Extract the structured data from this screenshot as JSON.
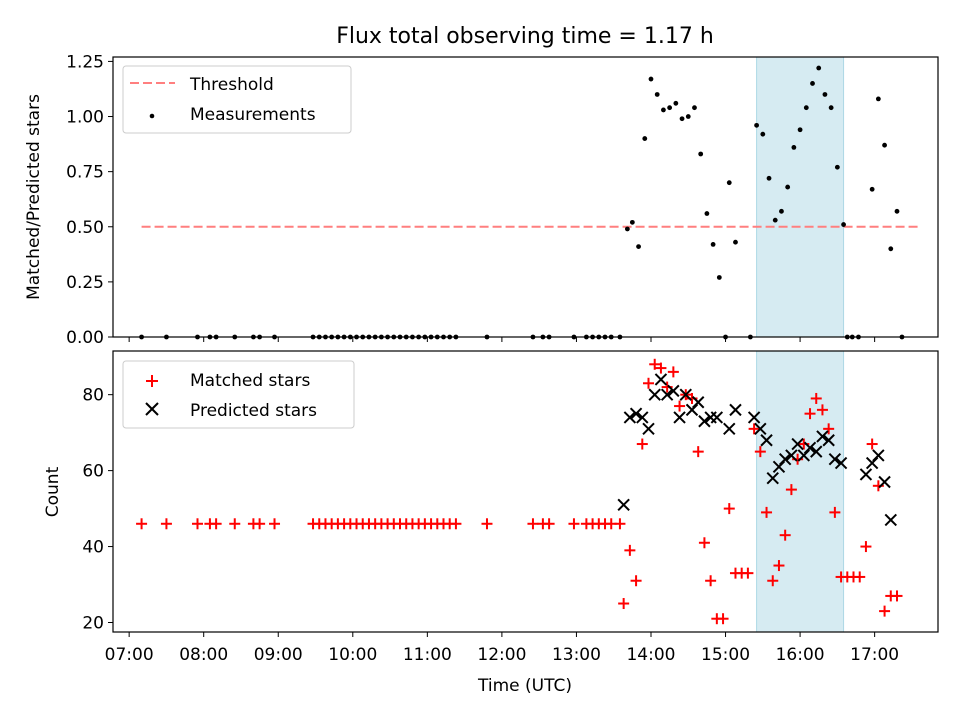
{
  "title": "Flux total observing time = 1.17 h",
  "chart_data": [
    {
      "type": "scatter",
      "panel": "top",
      "title": "Flux total observing time = 1.17 h",
      "ylabel": "Matched/Predicted stars",
      "ylim": [
        0,
        1.27
      ],
      "xlim": [
        "06:47",
        "17:51"
      ],
      "yticks": [
        0.0,
        0.25,
        0.5,
        0.75,
        1.0,
        1.25
      ],
      "ytick_labels": [
        "0.00",
        "0.25",
        "0.50",
        "0.75",
        "1.00",
        "1.25"
      ],
      "legend_placement": "top-left",
      "legend": [
        "Threshold",
        "Measurements"
      ],
      "grid": false,
      "threshold": {
        "name": "Threshold",
        "value": 0.5,
        "x": [
          "07:10",
          "17:35"
        ],
        "color": "#ff7f7f",
        "style": "dashed"
      },
      "shaded_interval": {
        "x": [
          "15:25",
          "16:35"
        ],
        "color": "#add8e6"
      },
      "series": [
        {
          "name": "Measurements",
          "color": "#000000",
          "marker": "dot",
          "points": [
            [
              "07:10",
              0
            ],
            [
              "07:30",
              0
            ],
            [
              "07:55",
              0
            ],
            [
              "08:05",
              0
            ],
            [
              "08:10",
              0
            ],
            [
              "08:25",
              0
            ],
            [
              "08:40",
              0
            ],
            [
              "08:45",
              0
            ],
            [
              "08:57",
              0
            ],
            [
              "09:28",
              0
            ],
            [
              "09:33",
              0
            ],
            [
              "09:38",
              0
            ],
            [
              "09:43",
              0
            ],
            [
              "09:48",
              0
            ],
            [
              "09:53",
              0
            ],
            [
              "09:58",
              0
            ],
            [
              "10:03",
              0
            ],
            [
              "10:08",
              0
            ],
            [
              "10:13",
              0
            ],
            [
              "10:18",
              0
            ],
            [
              "10:23",
              0
            ],
            [
              "10:28",
              0
            ],
            [
              "10:33",
              0
            ],
            [
              "10:38",
              0
            ],
            [
              "10:43",
              0
            ],
            [
              "10:48",
              0
            ],
            [
              "10:53",
              0
            ],
            [
              "10:58",
              0
            ],
            [
              "11:03",
              0
            ],
            [
              "11:08",
              0
            ],
            [
              "11:13",
              0
            ],
            [
              "11:18",
              0
            ],
            [
              "11:23",
              0
            ],
            [
              "11:48",
              0
            ],
            [
              "12:25",
              0
            ],
            [
              "12:33",
              0
            ],
            [
              "12:38",
              0
            ],
            [
              "12:58",
              0
            ],
            [
              "13:08",
              0
            ],
            [
              "13:13",
              0
            ],
            [
              "13:18",
              0
            ],
            [
              "13:23",
              0
            ],
            [
              "13:28",
              0
            ],
            [
              "13:35",
              0
            ],
            [
              "13:41",
              0.49
            ],
            [
              "13:45",
              0.52
            ],
            [
              "13:50",
              0.41
            ],
            [
              "13:55",
              0.9
            ],
            [
              "14:00",
              1.17
            ],
            [
              "14:05",
              1.1
            ],
            [
              "14:10",
              1.03
            ],
            [
              "14:15",
              1.04
            ],
            [
              "14:20",
              1.06
            ],
            [
              "14:25",
              0.99
            ],
            [
              "14:30",
              1.0
            ],
            [
              "14:35",
              1.04
            ],
            [
              "14:40",
              0.83
            ],
            [
              "14:45",
              0.56
            ],
            [
              "14:50",
              0.42
            ],
            [
              "14:55",
              0.27
            ],
            [
              "15:00",
              0.0
            ],
            [
              "15:03",
              0.7
            ],
            [
              "15:08",
              0.43
            ],
            [
              "15:20",
              0.0
            ],
            [
              "15:25",
              0.96
            ],
            [
              "15:30",
              0.92
            ],
            [
              "15:35",
              0.72
            ],
            [
              "15:40",
              0.53
            ],
            [
              "15:45",
              0.57
            ],
            [
              "15:50",
              0.68
            ],
            [
              "15:55",
              0.86
            ],
            [
              "16:00",
              0.94
            ],
            [
              "16:05",
              1.04
            ],
            [
              "16:10",
              1.15
            ],
            [
              "16:15",
              1.22
            ],
            [
              "16:20",
              1.1
            ],
            [
              "16:25",
              1.04
            ],
            [
              "16:30",
              0.77
            ],
            [
              "16:35",
              0.51
            ],
            [
              "16:38",
              0
            ],
            [
              "16:42",
              0
            ],
            [
              "16:47",
              0
            ],
            [
              "16:58",
              0.67
            ],
            [
              "17:03",
              1.08
            ],
            [
              "17:08",
              0.87
            ],
            [
              "17:13",
              0.4
            ],
            [
              "17:18",
              0.57
            ],
            [
              "17:22",
              0
            ]
          ]
        }
      ]
    },
    {
      "type": "scatter",
      "panel": "bottom",
      "xlabel": "Time (UTC)",
      "ylabel": "Count",
      "ylim": [
        17.5,
        91.5
      ],
      "xlim": [
        "06:47",
        "17:51"
      ],
      "yticks": [
        20,
        40,
        60,
        80
      ],
      "ytick_labels": [
        "20",
        "40",
        "60",
        "80"
      ],
      "xticks": [
        "07:00",
        "08:00",
        "09:00",
        "10:00",
        "11:00",
        "12:00",
        "13:00",
        "14:00",
        "15:00",
        "16:00",
        "17:00"
      ],
      "xtick_labels": [
        "07:00",
        "08:00",
        "09:00",
        "10:00",
        "11:00",
        "12:00",
        "13:00",
        "14:00",
        "15:00",
        "16:00",
        "17:00"
      ],
      "legend_placement": "top-left",
      "legend": [
        "Matched stars",
        "Predicted stars"
      ],
      "grid": false,
      "shaded_interval": {
        "x": [
          "15:25",
          "16:35"
        ],
        "color": "#add8e6"
      },
      "series": [
        {
          "name": "Matched stars",
          "color": "#ff0000",
          "marker": "plus",
          "points": [
            [
              "07:10",
              46
            ],
            [
              "07:30",
              46
            ],
            [
              "07:55",
              46
            ],
            [
              "08:05",
              46
            ],
            [
              "08:10",
              46
            ],
            [
              "08:25",
              46
            ],
            [
              "08:40",
              46
            ],
            [
              "08:45",
              46
            ],
            [
              "08:57",
              46
            ],
            [
              "09:28",
              46
            ],
            [
              "09:33",
              46
            ],
            [
              "09:38",
              46
            ],
            [
              "09:43",
              46
            ],
            [
              "09:48",
              46
            ],
            [
              "09:53",
              46
            ],
            [
              "09:58",
              46
            ],
            [
              "10:03",
              46
            ],
            [
              "10:08",
              46
            ],
            [
              "10:13",
              46
            ],
            [
              "10:18",
              46
            ],
            [
              "10:23",
              46
            ],
            [
              "10:28",
              46
            ],
            [
              "10:33",
              46
            ],
            [
              "10:38",
              46
            ],
            [
              "10:43",
              46
            ],
            [
              "10:48",
              46
            ],
            [
              "10:53",
              46
            ],
            [
              "10:58",
              46
            ],
            [
              "11:03",
              46
            ],
            [
              "11:08",
              46
            ],
            [
              "11:13",
              46
            ],
            [
              "11:18",
              46
            ],
            [
              "11:23",
              46
            ],
            [
              "11:48",
              46
            ],
            [
              "12:25",
              46
            ],
            [
              "12:33",
              46
            ],
            [
              "12:38",
              46
            ],
            [
              "12:58",
              46
            ],
            [
              "13:08",
              46
            ],
            [
              "13:13",
              46
            ],
            [
              "13:18",
              46
            ],
            [
              "13:23",
              46
            ],
            [
              "13:28",
              46
            ],
            [
              "13:35",
              46
            ],
            [
              "13:38",
              25
            ],
            [
              "13:43",
              39
            ],
            [
              "13:48",
              31
            ],
            [
              "13:53",
              67
            ],
            [
              "13:58",
              83
            ],
            [
              "14:03",
              88
            ],
            [
              "14:08",
              87
            ],
            [
              "14:13",
              82
            ],
            [
              "14:18",
              86
            ],
            [
              "14:23",
              77
            ],
            [
              "14:28",
              80
            ],
            [
              "14:33",
              79
            ],
            [
              "14:38",
              65
            ],
            [
              "14:43",
              41
            ],
            [
              "14:48",
              31
            ],
            [
              "14:53",
              21
            ],
            [
              "14:58",
              21
            ],
            [
              "15:03",
              50
            ],
            [
              "15:08",
              33
            ],
            [
              "15:13",
              33
            ],
            [
              "15:18",
              33
            ],
            [
              "15:23",
              71
            ],
            [
              "15:28",
              65
            ],
            [
              "15:33",
              49
            ],
            [
              "15:38",
              31
            ],
            [
              "15:43",
              35
            ],
            [
              "15:48",
              43
            ],
            [
              "15:53",
              55
            ],
            [
              "15:58",
              63
            ],
            [
              "16:03",
              67
            ],
            [
              "16:08",
              75
            ],
            [
              "16:13",
              79
            ],
            [
              "16:18",
              76
            ],
            [
              "16:23",
              71
            ],
            [
              "16:28",
              49
            ],
            [
              "16:33",
              32
            ],
            [
              "16:38",
              32
            ],
            [
              "16:43",
              32
            ],
            [
              "16:48",
              32
            ],
            [
              "16:53",
              40
            ],
            [
              "16:58",
              67
            ],
            [
              "17:03",
              56
            ],
            [
              "17:08",
              23
            ],
            [
              "17:13",
              27
            ],
            [
              "17:18",
              27
            ]
          ]
        },
        {
          "name": "Predicted stars",
          "color": "#000000",
          "marker": "x",
          "points": [
            [
              "13:38",
              51
            ],
            [
              "13:43",
              74
            ],
            [
              "13:48",
              75
            ],
            [
              "13:53",
              74
            ],
            [
              "13:58",
              71
            ],
            [
              "14:03",
              80
            ],
            [
              "14:08",
              84
            ],
            [
              "14:13",
              80
            ],
            [
              "14:18",
              81
            ],
            [
              "14:23",
              74
            ],
            [
              "14:28",
              80
            ],
            [
              "14:33",
              76
            ],
            [
              "14:38",
              78
            ],
            [
              "14:43",
              73
            ],
            [
              "14:48",
              74
            ],
            [
              "14:53",
              74
            ],
            [
              "15:03",
              71
            ],
            [
              "15:08",
              76
            ],
            [
              "15:23",
              74
            ],
            [
              "15:28",
              71
            ],
            [
              "15:33",
              68
            ],
            [
              "15:38",
              58
            ],
            [
              "15:43",
              61
            ],
            [
              "15:48",
              63
            ],
            [
              "15:53",
              64
            ],
            [
              "15:58",
              67
            ],
            [
              "16:03",
              64
            ],
            [
              "16:08",
              66
            ],
            [
              "16:13",
              65
            ],
            [
              "16:18",
              69
            ],
            [
              "16:23",
              68
            ],
            [
              "16:28",
              63
            ],
            [
              "16:33",
              62
            ],
            [
              "16:53",
              59
            ],
            [
              "16:58",
              62
            ],
            [
              "17:03",
              64
            ],
            [
              "17:08",
              57
            ],
            [
              "17:13",
              47
            ]
          ]
        }
      ]
    }
  ]
}
